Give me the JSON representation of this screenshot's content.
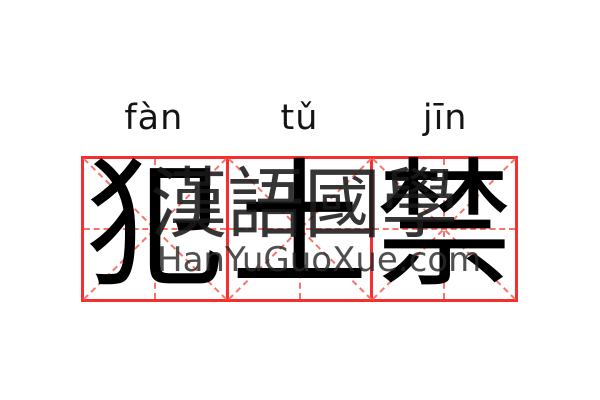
{
  "word": {
    "pinyin": [
      {
        "text": "fàn"
      },
      {
        "text": "tǔ"
      },
      {
        "text": "jīn"
      }
    ],
    "characters": [
      {
        "char": "犯"
      },
      {
        "char": "土"
      },
      {
        "char": "禁"
      }
    ]
  },
  "watermark": {
    "cjk": "漢語國學",
    "site": "HanYuGuoXue.com"
  },
  "colors": {
    "background": "#ffffff",
    "grid_border": "#f52f2f",
    "grid_dashed": "#f7746c",
    "ink": "#000000",
    "watermark_ink": "#1a1a1a"
  }
}
